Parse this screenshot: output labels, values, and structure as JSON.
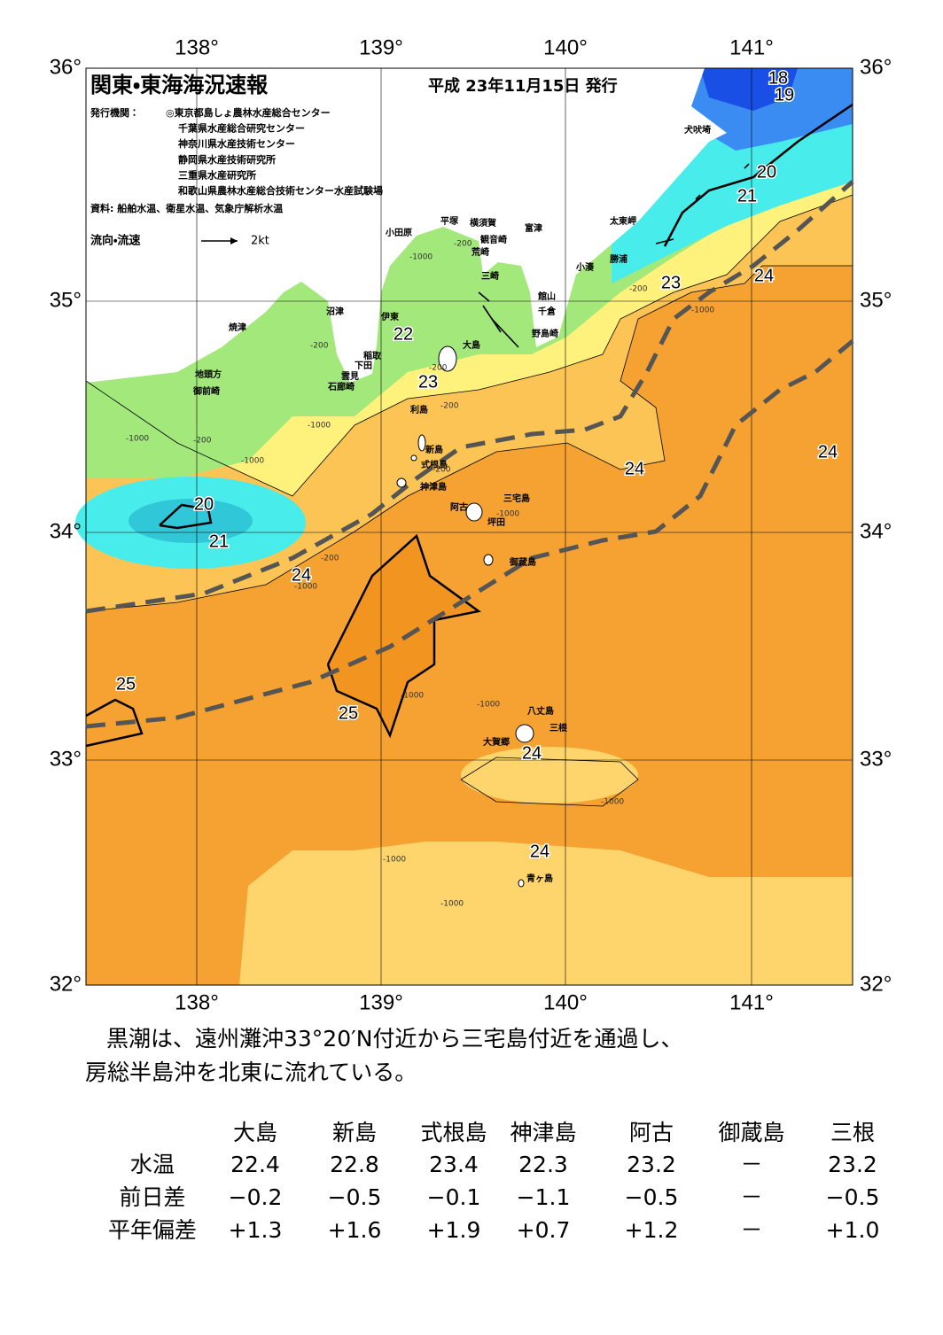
{
  "header": {
    "title": "関東・東海海況速報",
    "date": "平成 23年11月15日 発行",
    "issuers_label": "発行機関：",
    "issuers": [
      "◎東京都島しょ農林水産総合センター",
      "千葉県水産総合研究センター",
      "神奈川県水産技術センター",
      "静岡県水産技術研究所",
      "三重県水産研究所",
      "和歌山県農林水産総合技術センター水産試験場"
    ],
    "source": "資料: 船舶水温、衛星水温、気象庁解析水温",
    "legend_label": "流向・流速",
    "legend_speed": "2kt"
  },
  "axes": {
    "lon_labels": [
      "138°",
      "139°",
      "140°",
      "141°"
    ],
    "lat_labels": [
      "36°",
      "35°",
      "34°",
      "33°",
      "32°"
    ]
  },
  "place_names": [
    "犬吠埼",
    "太東岬",
    "勝浦",
    "小湊",
    "富津",
    "観音崎",
    "横須賀",
    "平塚",
    "荒崎",
    "三崎",
    "館山",
    "千倉",
    "野島崎",
    "小田原",
    "沼津",
    "伊東",
    "焼津",
    "稲取",
    "下田",
    "雲見",
    "石廊崎",
    "地頭方",
    "御前崎",
    "大島",
    "利島",
    "新島",
    "式根島",
    "神津島",
    "三宅島",
    "阿古",
    "坪田",
    "御蔵島",
    "八丈島",
    "三根",
    "大賀郷",
    "青ヶ島"
  ],
  "contour_labels": [
    "18",
    "19",
    "20",
    "21",
    "23",
    "24",
    "22",
    "23",
    "24",
    "24",
    "20",
    "21",
    "24",
    "25",
    "25",
    "24",
    "24"
  ],
  "depth_labels": [
    "-200",
    "-1000",
    "-200",
    "-200",
    "-200",
    "-1000",
    "-200",
    "-1000",
    "-1000",
    "-200",
    "-1000",
    "-200",
    "-1000",
    "-1000",
    "-1000",
    "-1000",
    "-1000",
    "-1000",
    "-1000",
    "-200"
  ],
  "summary": [
    "黒潮は、遠州灘沖33°20′N付近から三宅島付近を通過し、",
    "房総半島沖を北東に流れている。"
  ],
  "table": {
    "columns": [
      "大島",
      "新島",
      "式根島",
      "神津島",
      "阿古",
      "御蔵島",
      "三根"
    ],
    "rows": [
      {
        "label": "水温",
        "values": [
          "22.4",
          "22.8",
          "23.4",
          "22.3",
          "23.2",
          "－",
          "23.2"
        ]
      },
      {
        "label": "前日差",
        "values": [
          "−0.2",
          "−0.5",
          "−0.1",
          "−1.1",
          "−0.5",
          "－",
          "−0.5"
        ]
      },
      {
        "label": "平年偏差",
        "values": [
          "+1.3",
          "+1.6",
          "+1.9",
          "+0.7",
          "+1.2",
          "－",
          "+1.0"
        ]
      }
    ]
  }
}
